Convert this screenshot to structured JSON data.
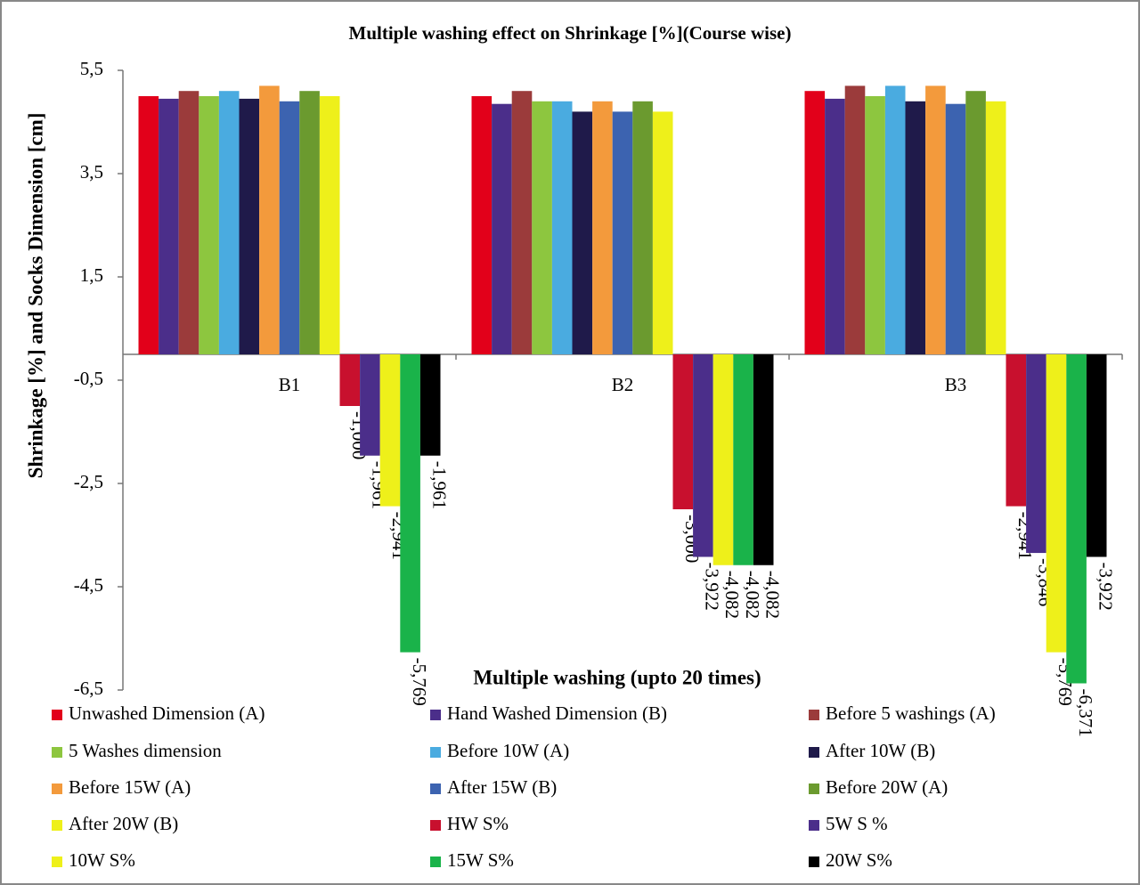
{
  "chart_data": {
    "type": "bar",
    "title": "Multiple washing effect on Shrinkage [%](Course wise)",
    "x_label": "Multiple washing (upto 20 times)",
    "y_label": "Shrinkage [%] and Socks Dimension [cm]",
    "categories": [
      "B1",
      "B2",
      "B3"
    ],
    "ylim": [
      -6.5,
      5.5
    ],
    "yticks": [
      {
        "value": 5.5,
        "label": "5,5"
      },
      {
        "value": 3.5,
        "label": "3,5"
      },
      {
        "value": 1.5,
        "label": "1,5"
      },
      {
        "value": -0.5,
        "label": "-0,5"
      },
      {
        "value": -2.5,
        "label": "-2,5"
      },
      {
        "value": -4.5,
        "label": "-4,5"
      },
      {
        "value": -6.5,
        "label": "-6,5"
      }
    ],
    "legend": "bottom",
    "series": [
      {
        "name": "Unwashed Dimension (A)",
        "color": "#e2001a",
        "values": [
          5.0,
          5.0,
          5.1
        ]
      },
      {
        "name": "Hand Washed Dimension (B)",
        "color": "#4b2e8a",
        "values": [
          4.95,
          4.85,
          4.95
        ]
      },
      {
        "name": "Before 5 washings (A)",
        "color": "#9b3b3b",
        "values": [
          5.1,
          5.1,
          5.2
        ]
      },
      {
        "name": "5 Washes dimension",
        "color": "#8dc63f",
        "values": [
          5.0,
          4.9,
          5.0
        ]
      },
      {
        "name": "Before 10W (A)",
        "color": "#4aabe0",
        "values": [
          5.1,
          4.9,
          5.2
        ]
      },
      {
        "name": "After 10W (B)",
        "color": "#1f1a4a",
        "values": [
          4.95,
          4.7,
          4.9
        ]
      },
      {
        "name": "Before 15W (A)",
        "color": "#f39a3c",
        "values": [
          5.2,
          4.9,
          5.2
        ]
      },
      {
        "name": "After 15W (B)",
        "color": "#3c63b0",
        "values": [
          4.9,
          4.7,
          4.85
        ]
      },
      {
        "name": "Before 20W (A)",
        "color": "#6b9a2f",
        "values": [
          5.1,
          4.9,
          5.1
        ]
      },
      {
        "name": "After 20W (B)",
        "color": "#eef01a",
        "values": [
          5.0,
          4.7,
          4.9
        ]
      },
      {
        "name": "HW S%",
        "color": "#c8102e",
        "values": [
          -1.0,
          -3.0,
          -2.941
        ],
        "value_labels": [
          "-1,000",
          "-3,000",
          "-2,941"
        ]
      },
      {
        "name": "5W S %",
        "color": "#4b2e8a",
        "values": [
          -1.961,
          -3.922,
          -3.846
        ],
        "value_labels": [
          "-1,961",
          "-3,922",
          "-3,846"
        ]
      },
      {
        "name": "10W S%",
        "color": "#eef01a",
        "values": [
          -2.941,
          -4.082,
          -5.769
        ],
        "value_labels": [
          "-2,941",
          "-4,082",
          "-5,769"
        ]
      },
      {
        "name": "15W S%",
        "color": "#1ab34a",
        "values": [
          -5.769,
          -4.082,
          -6.371
        ],
        "value_labels": [
          "-5,769",
          "-4,082",
          "-6,371"
        ]
      },
      {
        "name": "20W S%",
        "color": "#000000",
        "values": [
          -1.961,
          -4.082,
          -3.922
        ],
        "value_labels": [
          "-1,961",
          "-4,082",
          "-3,922"
        ]
      }
    ]
  }
}
